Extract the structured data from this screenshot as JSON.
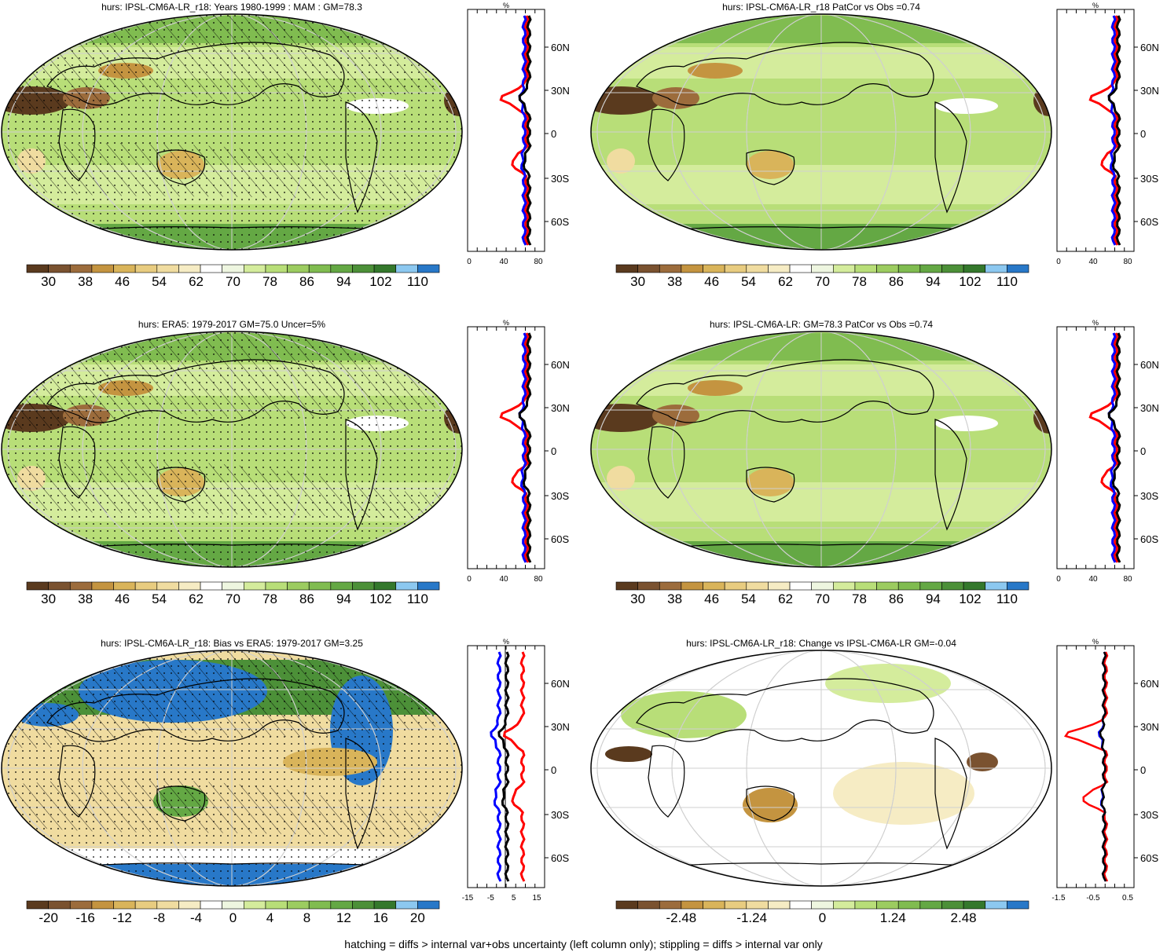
{
  "footer": "hatching = diffs > internal var+obs uncertainty (left column only); stippling = diffs > internal var only",
  "colorbars": {
    "abs": {
      "labels": [
        "30",
        "38",
        "46",
        "54",
        "62",
        "70",
        "78",
        "86",
        "94",
        "102",
        "110"
      ]
    },
    "bias": {
      "labels": [
        "-20",
        "-16",
        "-12",
        "-8",
        "-4",
        "0",
        "4",
        "8",
        "12",
        "16",
        "20"
      ]
    },
    "change": {
      "labels": [
        "-2.48",
        "-1.24",
        "0",
        "1.24",
        "2.48"
      ]
    },
    "colors": [
      "#5a3a1e",
      "#7a5230",
      "#9c6c3c",
      "#c49440",
      "#d9b45a",
      "#e8cc80",
      "#f0dca0",
      "#f6ecc4",
      "#ffffff",
      "#eef6e0",
      "#d4ec9c",
      "#b8de78",
      "#9ccc60",
      "#80bc50",
      "#64a844",
      "#4c9038",
      "#34782c",
      "#8cc8f0",
      "#2878c8"
    ]
  },
  "panels": [
    {
      "id": "p1",
      "title": "hurs: IPSL-CM6A-LR_r18: Years 1980-1999 : MAM : GM=78.3",
      "cbar": "abs",
      "hatch": true,
      "zonal_unit": "%",
      "zonal_ticks": [
        "0",
        "40",
        "80"
      ],
      "lat_labels": [
        "60N",
        "30N",
        "0",
        "30S",
        "60S"
      ]
    },
    {
      "id": "p2",
      "title": "hurs: IPSL-CM6A-LR_r18 PatCor vs Obs =0.74",
      "cbar": "abs",
      "hatch": false,
      "zonal_unit": "%",
      "zonal_ticks": [
        "0",
        "40",
        "80"
      ],
      "lat_labels": [
        "60N",
        "30N",
        "0",
        "30S",
        "60S"
      ]
    },
    {
      "id": "p3",
      "title": "hurs: ERA5: 1979-2017 GM=75.0 Uncer=5%",
      "cbar": "abs",
      "hatch": true,
      "zonal_unit": "%",
      "zonal_ticks": [
        "0",
        "40",
        "80"
      ],
      "lat_labels": [
        "60N",
        "30N",
        "0",
        "30S",
        "60S"
      ]
    },
    {
      "id": "p4",
      "title": "hurs: IPSL-CM6A-LR: GM=78.3 PatCor vs Obs =0.74",
      "cbar": "abs",
      "hatch": false,
      "zonal_unit": "%",
      "zonal_ticks": [
        "0",
        "40",
        "80"
      ],
      "lat_labels": [
        "60N",
        "30N",
        "0",
        "30S",
        "60S"
      ]
    },
    {
      "id": "p5",
      "title": "hurs: IPSL-CM6A-LR_r18: Bias vs ERA5: 1979-2017 GM=3.25",
      "cbar": "bias",
      "hatch": true,
      "zonal_unit": "%",
      "zonal_ticks": [
        "-15",
        "-5",
        "5",
        "15"
      ],
      "lat_labels": [
        "60N",
        "30N",
        "0",
        "30S",
        "60S"
      ]
    },
    {
      "id": "p6",
      "title": "hurs: IPSL-CM6A-LR_r18: Change vs IPSL-CM6A-LR GM=-0.04",
      "cbar": "change",
      "hatch": false,
      "zonal_unit": "%",
      "zonal_ticks": [
        "-1.5",
        "-0.5",
        "0.5"
      ],
      "lat_labels": [
        "60N",
        "30N",
        "0",
        "30S",
        "60S"
      ]
    }
  ]
}
